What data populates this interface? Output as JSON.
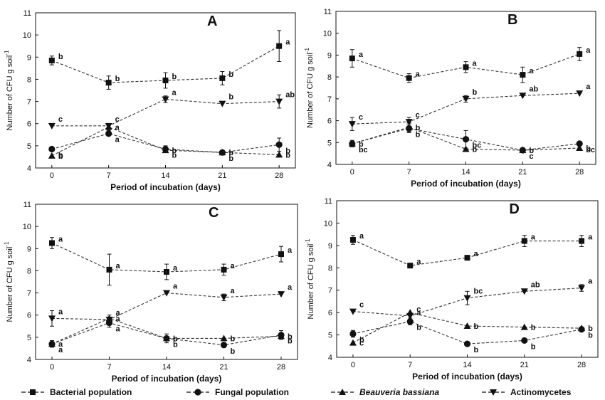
{
  "chart_data": [
    {
      "type": "line",
      "panel": "A",
      "xlabel": "Period of incubation (days)",
      "ylabel": "Number of CFU g soil-1",
      "x": [
        0,
        7,
        14,
        21,
        28
      ],
      "xticks": [
        "0",
        "7",
        "14",
        "21",
        "28"
      ],
      "ylim": [
        4,
        11
      ],
      "yticks": [
        "4",
        "5",
        "6",
        "7",
        "8",
        "9",
        "10",
        "11"
      ],
      "series": [
        {
          "name": "Bacterial population",
          "values": [
            8.85,
            7.85,
            7.95,
            8.05,
            9.5
          ],
          "errors": [
            0.2,
            0.3,
            0.35,
            0.3,
            0.7
          ],
          "letters": [
            "b",
            "b",
            "b",
            "b",
            "a"
          ]
        },
        {
          "name": "Fungal population",
          "values": [
            4.85,
            5.55,
            4.85,
            4.7,
            5.05
          ],
          "errors": [
            0.1,
            0.1,
            0.15,
            0.1,
            0.3
          ],
          "letters": [
            "b",
            "a",
            "b",
            "b",
            "b"
          ]
        },
        {
          "name": "Beauveria bassiana",
          "values": [
            4.55,
            5.85,
            4.8,
            4.7,
            4.6
          ],
          "errors": [
            0.1,
            0.15,
            0.1,
            0.1,
            0.1
          ],
          "letters": [
            "b",
            "a",
            "b",
            "b",
            "b"
          ]
        },
        {
          "name": "Actinomycetes",
          "values": [
            5.9,
            5.9,
            7.1,
            6.9,
            7.0
          ],
          "errors": [
            0.1,
            0.1,
            0.15,
            0.1,
            0.3
          ],
          "letters": [
            "c",
            "c",
            "a",
            "b",
            "ab"
          ]
        }
      ]
    },
    {
      "type": "line",
      "panel": "B",
      "xlabel": "Period of incubation (days)",
      "ylabel": "Number of CFU g soil-1",
      "x": [
        0,
        7,
        14,
        21,
        28
      ],
      "xticks": [
        "0",
        "7",
        "14",
        "21",
        "28"
      ],
      "ylim": [
        4,
        11
      ],
      "yticks": [
        "4",
        "5",
        "6",
        "7",
        "8",
        "9",
        "10",
        "11"
      ],
      "series": [
        {
          "name": "Bacterial population",
          "values": [
            8.85,
            7.95,
            8.45,
            8.1,
            9.05
          ],
          "errors": [
            0.4,
            0.2,
            0.25,
            0.35,
            0.3
          ],
          "letters": [
            "a",
            "a",
            "a",
            "a",
            "a"
          ]
        },
        {
          "name": "Fungal population",
          "values": [
            4.95,
            5.65,
            5.15,
            4.65,
            4.95
          ],
          "errors": [
            0.15,
            0.2,
            0.4,
            0.1,
            0.1
          ],
          "letters": [
            "bc",
            "b",
            "bc",
            "c",
            "bc"
          ]
        },
        {
          "name": "Beauveria bassiana",
          "values": [
            4.95,
            5.7,
            4.7,
            4.65,
            4.75
          ],
          "errors": [
            0.1,
            0.2,
            0.1,
            0.1,
            0.1
          ],
          "letters": [
            "b",
            "b",
            "b",
            "b",
            "b"
          ]
        },
        {
          "name": "Actinomycetes",
          "values": [
            5.85,
            5.95,
            7.0,
            7.15,
            7.25
          ],
          "errors": [
            0.3,
            0.2,
            0.15,
            0.1,
            0.1
          ],
          "letters": [
            "c",
            "c",
            "b",
            "ab",
            "a"
          ]
        }
      ]
    },
    {
      "type": "line",
      "panel": "C",
      "xlabel": "Period of incubation (days)",
      "ylabel": "Number of CFU g soil-1",
      "x": [
        0,
        7,
        14,
        21,
        28
      ],
      "xticks": [
        "0",
        "7",
        "14",
        "21",
        "28"
      ],
      "ylim": [
        4,
        11
      ],
      "yticks": [
        "4",
        "5",
        "6",
        "7",
        "8",
        "9",
        "10",
        "11"
      ],
      "series": [
        {
          "name": "Bacterial population",
          "values": [
            9.25,
            8.05,
            7.95,
            8.05,
            8.75
          ],
          "errors": [
            0.25,
            0.7,
            0.35,
            0.25,
            0.35
          ],
          "letters": [
            "a",
            "a",
            "a",
            "a",
            "a"
          ]
        },
        {
          "name": "Fungal population",
          "values": [
            4.7,
            5.65,
            4.95,
            4.65,
            5.1
          ],
          "errors": [
            0.15,
            0.2,
            0.2,
            0.1,
            0.2
          ],
          "letters": [
            "a",
            "a",
            "b",
            "b",
            "b"
          ]
        },
        {
          "name": "Beauveria bassiana",
          "values": [
            4.7,
            5.85,
            4.95,
            4.95,
            5.05
          ],
          "errors": [
            0.1,
            0.15,
            0.1,
            0.1,
            0.1
          ],
          "letters": [
            "a",
            "a",
            "b",
            "b",
            "b"
          ]
        },
        {
          "name": "Actinomycetes",
          "values": [
            5.85,
            5.8,
            7.0,
            6.8,
            6.95
          ],
          "errors": [
            0.35,
            0.1,
            0.1,
            0.15,
            0.1
          ],
          "letters": [
            "a",
            "a",
            "a",
            "a",
            "a"
          ]
        }
      ]
    },
    {
      "type": "line",
      "panel": "D",
      "xlabel": "Period of incubation (days)",
      "ylabel": "Number of CFU g soil-1",
      "x": [
        0,
        7,
        14,
        21,
        28
      ],
      "xticks": [
        "0",
        "7",
        "14",
        "21",
        "28"
      ],
      "ylim": [
        4,
        11
      ],
      "yticks": [
        "4",
        "5",
        "6",
        "7",
        "8",
        "9",
        "10",
        "11"
      ],
      "series": [
        {
          "name": "Bacterial population",
          "values": [
            9.25,
            8.1,
            8.45,
            9.2,
            9.2
          ],
          "errors": [
            0.2,
            0.05,
            0.1,
            0.25,
            0.25
          ],
          "letters": [
            "a",
            "a",
            "a",
            "a",
            "a"
          ]
        },
        {
          "name": "Fungal population",
          "values": [
            5.05,
            5.6,
            4.6,
            4.75,
            5.25
          ],
          "errors": [
            0.15,
            0.15,
            0.1,
            0.1,
            0.1
          ],
          "letters": [
            "b",
            "b",
            "b",
            "b",
            "b"
          ]
        },
        {
          "name": "Beauveria bassiana",
          "values": [
            4.65,
            6.0,
            5.4,
            5.35,
            5.3
          ],
          "errors": [
            0.1,
            0.1,
            0.1,
            0.1,
            0.1
          ],
          "letters": [
            "c",
            "a",
            "b",
            "b",
            "b"
          ]
        },
        {
          "name": "Actinomycetes",
          "values": [
            6.05,
            5.85,
            6.65,
            6.95,
            7.1
          ],
          "errors": [
            0.1,
            0.1,
            0.3,
            0.1,
            0.15
          ],
          "letters": [
            "c",
            "c",
            "bc",
            "ab",
            "a"
          ]
        }
      ]
    }
  ],
  "legend": [
    {
      "label": "Bacterial population",
      "marker": "square"
    },
    {
      "label": "Fungal population",
      "marker": "circle"
    },
    {
      "label": "Beauveria bassiana",
      "marker": "triangle-up",
      "italic": true
    },
    {
      "label": "Actinomycetes",
      "marker": "triangle-down"
    }
  ]
}
